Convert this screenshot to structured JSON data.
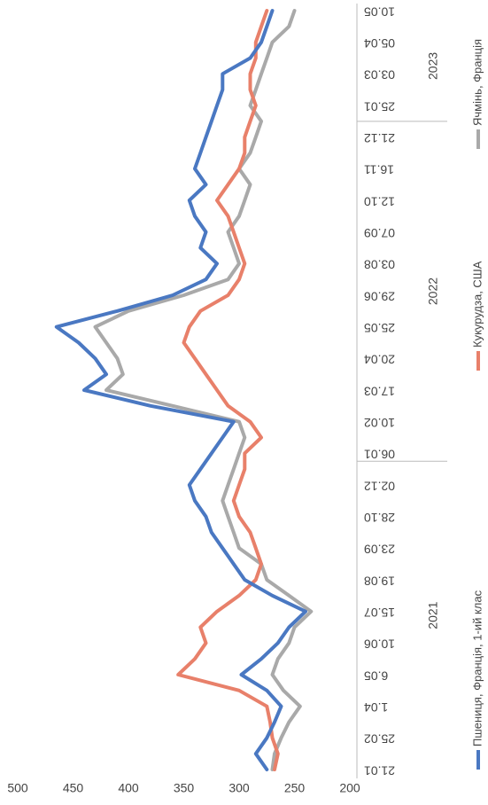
{
  "chart_data": {
    "type": "line",
    "categories": [
      "21.01",
      null,
      "25.02",
      null,
      "1.04",
      null,
      "6.05",
      null,
      "10.06",
      null,
      "15.07",
      null,
      "19.08",
      null,
      "23.09",
      null,
      "28.10",
      null,
      "02.12",
      null,
      "06.01",
      null,
      "10.02",
      null,
      "17.03",
      null,
      "20.04",
      null,
      "25.05",
      null,
      "29.06",
      null,
      "03.08",
      null,
      "07.09",
      null,
      "12.10",
      null,
      "16.11",
      null,
      "21.12",
      null,
      "25.01",
      null,
      "03.03",
      null,
      "05.04",
      null,
      "10.05"
    ],
    "x_groups": [
      "2021",
      "2022",
      "2023"
    ],
    "series": [
      {
        "name": "Пшениця, Франція, 1-ий клас",
        "color": "#4a78c2",
        "values": [
          275,
          285,
          275,
          268,
          262,
          275,
          298,
          280,
          265,
          255,
          240,
          270,
          295,
          305,
          315,
          325,
          330,
          340,
          345,
          335,
          325,
          315,
          305,
          380,
          440,
          420,
          430,
          445,
          465,
          410,
          360,
          330,
          320,
          335,
          330,
          340,
          345,
          330,
          340,
          335,
          330,
          325,
          320,
          315,
          315,
          290,
          280,
          275,
          270
        ]
      },
      {
        "name": "Кукурудза, США",
        "color": "#e8806a",
        "values": [
          268,
          265,
          270,
          272,
          275,
          300,
          355,
          340,
          330,
          335,
          320,
          300,
          285,
          280,
          285,
          290,
          300,
          305,
          300,
          295,
          295,
          280,
          290,
          310,
          320,
          330,
          340,
          350,
          345,
          335,
          310,
          300,
          295,
          300,
          305,
          310,
          320,
          310,
          300,
          295,
          295,
          290,
          285,
          290,
          290,
          285,
          285,
          280,
          275
        ]
      },
      {
        "name": "Ячмінь, Франція",
        "color": "#a9a9a9",
        "values": [
          270,
          268,
          262,
          255,
          245,
          260,
          270,
          265,
          255,
          250,
          235,
          255,
          275,
          280,
          300,
          305,
          310,
          315,
          310,
          305,
          300,
          295,
          300,
          360,
          420,
          405,
          410,
          420,
          430,
          400,
          350,
          310,
          300,
          305,
          310,
          300,
          295,
          290,
          300,
          290,
          285,
          280,
          290,
          285,
          280,
          275,
          270,
          255,
          250
        ]
      }
    ],
    "ylim": [
      200,
      500
    ],
    "yticks": [
      200,
      250,
      300,
      350,
      400,
      450,
      500
    ],
    "grid": false
  }
}
